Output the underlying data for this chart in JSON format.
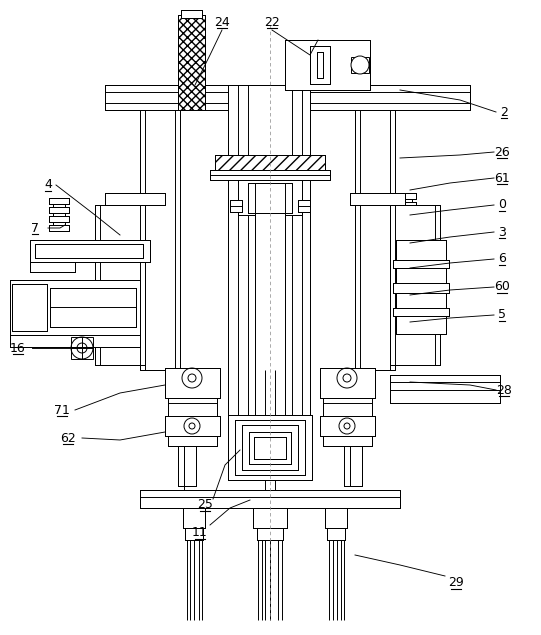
{
  "bg_color": "#ffffff",
  "line_color": "#000000",
  "lw": 0.7,
  "fig_width": 5.41,
  "fig_height": 6.35,
  "dpi": 100
}
